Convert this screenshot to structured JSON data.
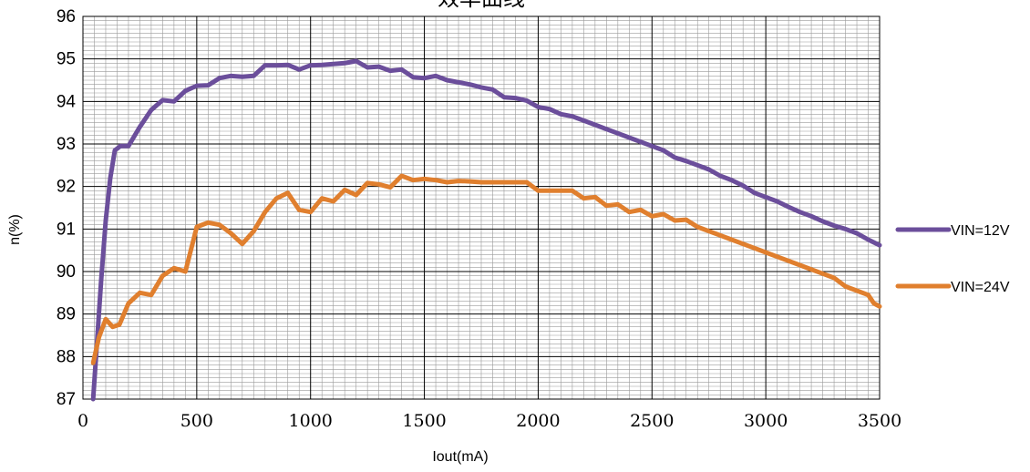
{
  "chart_data": {
    "type": "line",
    "title": "效率曲线",
    "xlabel": "Iout(mA)",
    "ylabel": "n(%)",
    "xlim": [
      0,
      3500
    ],
    "ylim": [
      87,
      96
    ],
    "x_ticks": [
      "0",
      "500",
      "1000",
      "1500",
      "2000",
      "2500",
      "3000",
      "3500"
    ],
    "y_ticks": [
      "87",
      "88",
      "89",
      "90",
      "91",
      "92",
      "93",
      "94",
      "95",
      "96"
    ],
    "grid": true,
    "legend_position": "right",
    "series": [
      {
        "name": "VIN=12V",
        "color": "#6B4E9B",
        "points": [
          [
            45,
            87.0
          ],
          [
            60,
            88.2
          ],
          [
            80,
            89.8
          ],
          [
            100,
            91.2
          ],
          [
            120,
            92.2
          ],
          [
            140,
            92.85
          ],
          [
            165,
            92.95
          ],
          [
            200,
            92.95
          ],
          [
            250,
            93.4
          ],
          [
            300,
            93.8
          ],
          [
            350,
            94.03
          ],
          [
            400,
            94.0
          ],
          [
            450,
            94.25
          ],
          [
            500,
            94.37
          ],
          [
            550,
            94.38
          ],
          [
            600,
            94.55
          ],
          [
            650,
            94.6
          ],
          [
            700,
            94.58
          ],
          [
            750,
            94.6
          ],
          [
            800,
            94.85
          ],
          [
            850,
            94.85
          ],
          [
            900,
            94.86
          ],
          [
            950,
            94.75
          ],
          [
            1000,
            94.85
          ],
          [
            1050,
            94.86
          ],
          [
            1100,
            94.88
          ],
          [
            1150,
            94.9
          ],
          [
            1200,
            94.95
          ],
          [
            1250,
            94.8
          ],
          [
            1300,
            94.82
          ],
          [
            1350,
            94.72
          ],
          [
            1400,
            94.75
          ],
          [
            1450,
            94.57
          ],
          [
            1500,
            94.55
          ],
          [
            1550,
            94.6
          ],
          [
            1600,
            94.5
          ],
          [
            1650,
            94.45
          ],
          [
            1700,
            94.4
          ],
          [
            1750,
            94.33
          ],
          [
            1800,
            94.28
          ],
          [
            1850,
            94.1
          ],
          [
            1900,
            94.08
          ],
          [
            1950,
            94.02
          ],
          [
            2000,
            93.87
          ],
          [
            2050,
            93.82
          ],
          [
            2100,
            93.7
          ],
          [
            2150,
            93.65
          ],
          [
            2200,
            93.55
          ],
          [
            2250,
            93.45
          ],
          [
            2300,
            93.35
          ],
          [
            2350,
            93.25
          ],
          [
            2400,
            93.15
          ],
          [
            2450,
            93.05
          ],
          [
            2500,
            92.95
          ],
          [
            2550,
            92.85
          ],
          [
            2600,
            92.68
          ],
          [
            2650,
            92.6
          ],
          [
            2700,
            92.5
          ],
          [
            2750,
            92.4
          ],
          [
            2800,
            92.25
          ],
          [
            2850,
            92.15
          ],
          [
            2900,
            92.02
          ],
          [
            2950,
            91.85
          ],
          [
            3000,
            91.75
          ],
          [
            3050,
            91.65
          ],
          [
            3100,
            91.52
          ],
          [
            3150,
            91.4
          ],
          [
            3200,
            91.3
          ],
          [
            3250,
            91.18
          ],
          [
            3300,
            91.08
          ],
          [
            3350,
            91.0
          ],
          [
            3400,
            90.9
          ],
          [
            3450,
            90.75
          ],
          [
            3500,
            90.62
          ]
        ]
      },
      {
        "name": "VIN=24V",
        "color": "#E07F2E",
        "points": [
          [
            45,
            87.85
          ],
          [
            70,
            88.45
          ],
          [
            100,
            88.88
          ],
          [
            130,
            88.7
          ],
          [
            160,
            88.75
          ],
          [
            200,
            89.25
          ],
          [
            250,
            89.5
          ],
          [
            300,
            89.45
          ],
          [
            350,
            89.9
          ],
          [
            400,
            90.08
          ],
          [
            450,
            90.0
          ],
          [
            500,
            91.05
          ],
          [
            550,
            91.15
          ],
          [
            600,
            91.1
          ],
          [
            650,
            90.9
          ],
          [
            700,
            90.65
          ],
          [
            750,
            90.95
          ],
          [
            800,
            91.4
          ],
          [
            850,
            91.72
          ],
          [
            900,
            91.85
          ],
          [
            950,
            91.45
          ],
          [
            1000,
            91.4
          ],
          [
            1050,
            91.72
          ],
          [
            1100,
            91.65
          ],
          [
            1150,
            91.92
          ],
          [
            1200,
            91.8
          ],
          [
            1250,
            92.08
          ],
          [
            1300,
            92.05
          ],
          [
            1350,
            91.98
          ],
          [
            1400,
            92.25
          ],
          [
            1450,
            92.15
          ],
          [
            1500,
            92.18
          ],
          [
            1550,
            92.15
          ],
          [
            1600,
            92.1
          ],
          [
            1650,
            92.13
          ],
          [
            1700,
            92.12
          ],
          [
            1750,
            92.1
          ],
          [
            1800,
            92.1
          ],
          [
            1850,
            92.1
          ],
          [
            1900,
            92.1
          ],
          [
            1950,
            92.1
          ],
          [
            2000,
            91.9
          ],
          [
            2050,
            91.9
          ],
          [
            2100,
            91.9
          ],
          [
            2150,
            91.9
          ],
          [
            2200,
            91.72
          ],
          [
            2250,
            91.75
          ],
          [
            2300,
            91.55
          ],
          [
            2350,
            91.58
          ],
          [
            2400,
            91.4
          ],
          [
            2450,
            91.45
          ],
          [
            2500,
            91.3
          ],
          [
            2550,
            91.35
          ],
          [
            2600,
            91.2
          ],
          [
            2650,
            91.22
          ],
          [
            2700,
            91.05
          ],
          [
            2750,
            90.95
          ],
          [
            2800,
            90.85
          ],
          [
            2850,
            90.75
          ],
          [
            2900,
            90.65
          ],
          [
            2950,
            90.55
          ],
          [
            3000,
            90.45
          ],
          [
            3050,
            90.35
          ],
          [
            3100,
            90.25
          ],
          [
            3150,
            90.15
          ],
          [
            3200,
            90.05
          ],
          [
            3250,
            89.95
          ],
          [
            3300,
            89.85
          ],
          [
            3350,
            89.65
          ],
          [
            3400,
            89.55
          ],
          [
            3450,
            89.45
          ],
          [
            3475,
            89.25
          ],
          [
            3500,
            89.18
          ]
        ]
      }
    ]
  }
}
